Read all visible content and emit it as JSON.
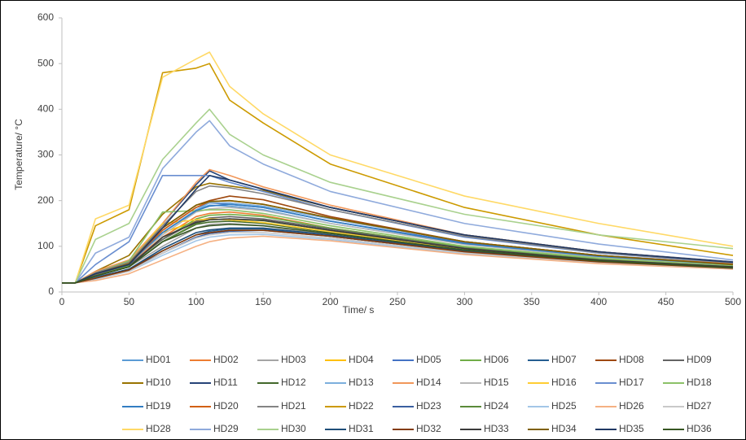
{
  "chart_data": {
    "type": "line",
    "x_label": "Time/ s",
    "y_label": "Temperature/ °C",
    "x": [
      0,
      10,
      25,
      50,
      75,
      100,
      110,
      125,
      150,
      200,
      300,
      400,
      500
    ],
    "xlim": [
      0,
      500
    ],
    "xticks": [
      0,
      50,
      100,
      150,
      200,
      250,
      300,
      350,
      400,
      450,
      500
    ],
    "ylim": [
      0,
      600
    ],
    "yticks": [
      0,
      100,
      200,
      300,
      400,
      500,
      600
    ],
    "grid": false,
    "legend": "bottom",
    "series": [
      {
        "name": "HD01",
        "color": "#5b9bd5",
        "values": [
          20,
          20,
          40,
          65,
          130,
          180,
          190,
          188,
          180,
          150,
          105,
          78,
          60
        ]
      },
      {
        "name": "HD02",
        "color": "#ed7d31",
        "values": [
          20,
          20,
          38,
          60,
          120,
          165,
          172,
          175,
          168,
          140,
          98,
          72,
          56
        ]
      },
      {
        "name": "HD03",
        "color": "#a5a5a5",
        "values": [
          20,
          20,
          35,
          55,
          100,
          140,
          148,
          150,
          145,
          125,
          90,
          68,
          54
        ]
      },
      {
        "name": "HD04",
        "color": "#ffc000",
        "values": [
          20,
          20,
          40,
          65,
          130,
          155,
          160,
          158,
          152,
          132,
          95,
          70,
          55
        ]
      },
      {
        "name": "HD05",
        "color": "#4472c4",
        "values": [
          20,
          20,
          40,
          62,
          135,
          185,
          195,
          192,
          185,
          155,
          108,
          80,
          62
        ]
      },
      {
        "name": "HD06",
        "color": "#70ad47",
        "values": [
          20,
          20,
          35,
          58,
          115,
          160,
          168,
          170,
          165,
          140,
          98,
          72,
          56
        ]
      },
      {
        "name": "HD07",
        "color": "#255e91",
        "values": [
          20,
          20,
          32,
          50,
          90,
          125,
          133,
          138,
          138,
          122,
          88,
          66,
          52
        ]
      },
      {
        "name": "HD08",
        "color": "#9e480e",
        "values": [
          20,
          20,
          42,
          66,
          140,
          190,
          200,
          210,
          202,
          165,
          110,
          80,
          60
        ]
      },
      {
        "name": "HD09",
        "color": "#636363",
        "values": [
          20,
          20,
          38,
          60,
          115,
          155,
          162,
          165,
          160,
          138,
          96,
          70,
          55
        ]
      },
      {
        "name": "HD10",
        "color": "#997300",
        "values": [
          20,
          20,
          45,
          80,
          170,
          230,
          238,
          232,
          222,
          185,
          125,
          88,
          65
        ]
      },
      {
        "name": "HD11",
        "color": "#264478",
        "values": [
          20,
          20,
          40,
          62,
          150,
          235,
          265,
          245,
          225,
          185,
          125,
          88,
          66
        ]
      },
      {
        "name": "HD12",
        "color": "#43682b",
        "values": [
          20,
          20,
          35,
          55,
          110,
          148,
          153,
          155,
          150,
          130,
          93,
          69,
          54
        ]
      },
      {
        "name": "HD13",
        "color": "#7cafdd",
        "values": [
          20,
          20,
          40,
          62,
          130,
          180,
          195,
          195,
          188,
          160,
          110,
          80,
          62
        ]
      },
      {
        "name": "HD14",
        "color": "#f1975a",
        "values": [
          20,
          20,
          45,
          70,
          150,
          240,
          268,
          255,
          230,
          190,
          125,
          88,
          65
        ]
      },
      {
        "name": "HD15",
        "color": "#b7b7b7",
        "values": [
          20,
          20,
          40,
          62,
          125,
          175,
          182,
          185,
          178,
          150,
          104,
          76,
          58
        ]
      },
      {
        "name": "HD16",
        "color": "#ffcd33",
        "values": [
          20,
          20,
          40,
          65,
          150,
          158,
          160,
          158,
          152,
          132,
          94,
          70,
          55
        ]
      },
      {
        "name": "HD17",
        "color": "#698ed0",
        "values": [
          20,
          20,
          60,
          110,
          255,
          255,
          255,
          240,
          220,
          180,
          120,
          85,
          64
        ]
      },
      {
        "name": "HD18",
        "color": "#8cc168",
        "values": [
          20,
          20,
          42,
          68,
          175,
          178,
          180,
          180,
          172,
          145,
          100,
          74,
          57
        ]
      },
      {
        "name": "HD19",
        "color": "#327dc2",
        "values": [
          20,
          20,
          40,
          62,
          130,
          178,
          188,
          192,
          185,
          155,
          106,
          78,
          60
        ]
      },
      {
        "name": "HD20",
        "color": "#d26012",
        "values": [
          20,
          20,
          40,
          62,
          135,
          185,
          198,
          200,
          192,
          162,
          110,
          80,
          61
        ]
      },
      {
        "name": "HD21",
        "color": "#848484",
        "values": [
          20,
          20,
          42,
          65,
          145,
          220,
          232,
          228,
          215,
          180,
          122,
          86,
          64
        ]
      },
      {
        "name": "HD22",
        "color": "#cc9a00",
        "values": [
          20,
          20,
          145,
          180,
          480,
          490,
          500,
          420,
          370,
          280,
          185,
          125,
          80
        ]
      },
      {
        "name": "HD23",
        "color": "#3a5fa0",
        "values": [
          20,
          20,
          30,
          48,
          85,
          120,
          128,
          133,
          135,
          122,
          88,
          66,
          52
        ]
      },
      {
        "name": "HD24",
        "color": "#5a8a39",
        "values": [
          20,
          20,
          35,
          55,
          110,
          150,
          158,
          160,
          156,
          135,
          95,
          70,
          55
        ]
      },
      {
        "name": "HD25",
        "color": "#a3c6e7",
        "values": [
          20,
          20,
          28,
          45,
          80,
          112,
          120,
          125,
          126,
          115,
          84,
          64,
          51
        ]
      },
      {
        "name": "HD26",
        "color": "#f5b183",
        "values": [
          20,
          20,
          25,
          40,
          70,
          100,
          110,
          118,
          122,
          112,
          82,
          62,
          50
        ]
      },
      {
        "name": "HD27",
        "color": "#c9c9c9",
        "values": [
          20,
          20,
          30,
          45,
          85,
          118,
          125,
          130,
          130,
          118,
          86,
          65,
          51
        ]
      },
      {
        "name": "HD28",
        "color": "#ffd966",
        "values": [
          20,
          20,
          160,
          190,
          470,
          510,
          525,
          450,
          390,
          300,
          210,
          150,
          100
        ]
      },
      {
        "name": "HD29",
        "color": "#8faadc",
        "values": [
          20,
          20,
          85,
          120,
          270,
          350,
          375,
          320,
          280,
          220,
          150,
          105,
          70
        ]
      },
      {
        "name": "HD30",
        "color": "#a9d18e",
        "values": [
          20,
          20,
          115,
          150,
          290,
          370,
          400,
          345,
          300,
          240,
          170,
          125,
          95
        ]
      },
      {
        "name": "HD31",
        "color": "#1f4e79",
        "values": [
          20,
          20,
          30,
          50,
          95,
          130,
          136,
          140,
          140,
          125,
          90,
          67,
          53
        ]
      },
      {
        "name": "HD32",
        "color": "#843c0c",
        "values": [
          20,
          20,
          30,
          48,
          90,
          125,
          130,
          135,
          135,
          122,
          88,
          66,
          52
        ]
      },
      {
        "name": "HD33",
        "color": "#3b3b3b",
        "values": [
          20,
          20,
          35,
          55,
          120,
          152,
          158,
          160,
          157,
          135,
          95,
          70,
          55
        ]
      },
      {
        "name": "HD34",
        "color": "#7f6000",
        "values": [
          20,
          20,
          40,
          62,
          140,
          190,
          198,
          200,
          192,
          162,
          110,
          80,
          60
        ]
      },
      {
        "name": "HD35",
        "color": "#203864",
        "values": [
          20,
          20,
          40,
          60,
          140,
          225,
          255,
          245,
          225,
          185,
          125,
          88,
          65
        ]
      },
      {
        "name": "HD36",
        "color": "#375623",
        "values": [
          20,
          20,
          35,
          55,
          110,
          140,
          145,
          148,
          145,
          128,
          92,
          68,
          53
        ]
      }
    ]
  }
}
